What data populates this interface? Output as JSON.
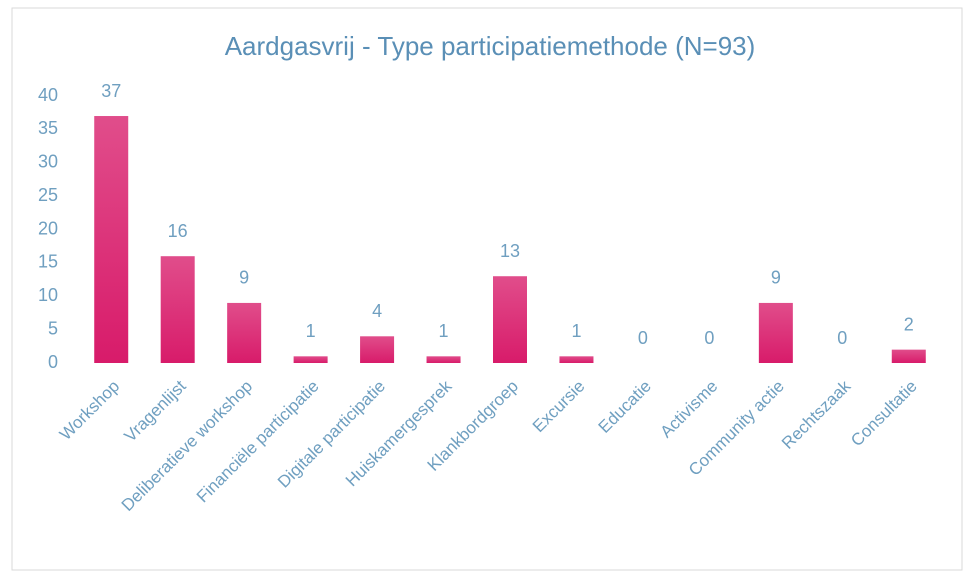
{
  "chart_data": {
    "type": "bar",
    "title": "Aardgasvrij - Type participatiemethode (N=93)",
    "categories": [
      "Workshop",
      "Vragenlijst",
      "Deliberatieve workshop",
      "Financiële participatie",
      "Digitale participatie",
      "Huiskamergesprek",
      "Klankbordgroep",
      "Excursie",
      "Educatie",
      "Activisme",
      "Community actie",
      "Rechtszaak",
      "Consultatie"
    ],
    "values": [
      37,
      16,
      9,
      1,
      4,
      1,
      13,
      1,
      0,
      0,
      9,
      0,
      2
    ],
    "color": "#d81b6a",
    "ylim": [
      0,
      40
    ],
    "yticks": [
      0,
      5,
      10,
      15,
      20,
      25,
      30,
      35,
      40
    ],
    "grid": false
  }
}
